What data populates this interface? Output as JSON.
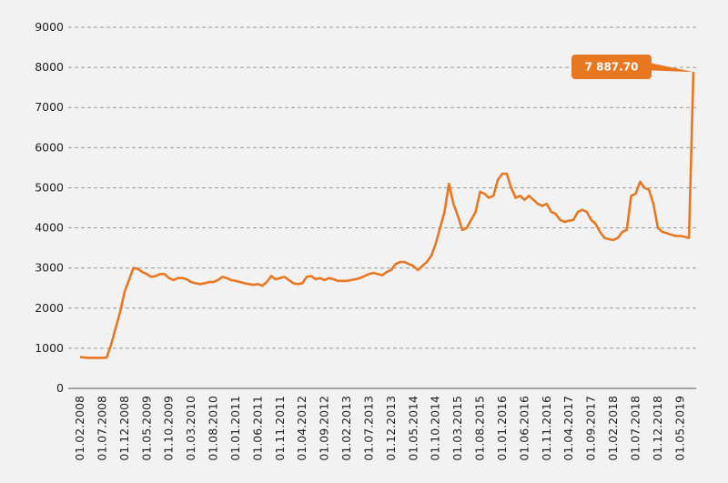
{
  "chart_data": {
    "type": "line",
    "color": "#e87722",
    "grid": true,
    "ylim": [
      0,
      9000
    ],
    "yticks": [
      0,
      1000,
      2000,
      3000,
      4000,
      5000,
      6000,
      7000,
      8000,
      9000
    ],
    "categories": [
      "01.02.2008",
      null,
      null,
      null,
      null,
      "01.07.2008",
      null,
      null,
      null,
      null,
      "01.12.2008",
      null,
      null,
      null,
      null,
      "01.05.2009",
      null,
      null,
      null,
      null,
      "01.10.2009",
      null,
      null,
      null,
      null,
      "01.03.2010",
      null,
      null,
      null,
      null,
      "01.08.2010",
      null,
      null,
      null,
      null,
      "01.01.2011",
      null,
      null,
      null,
      null,
      "01.06.2011",
      null,
      null,
      null,
      null,
      "01.11.2011",
      null,
      null,
      null,
      null,
      "01.04.2012",
      null,
      null,
      null,
      null,
      "01.09.2012",
      null,
      null,
      null,
      null,
      "01.02.2013",
      null,
      null,
      null,
      null,
      "01.07.2013",
      null,
      null,
      null,
      null,
      "01.12.2013",
      null,
      null,
      null,
      null,
      "01.05.2014",
      null,
      null,
      null,
      null,
      "01.10.2014",
      null,
      null,
      null,
      null,
      "01.03.2015",
      null,
      null,
      null,
      null,
      "01.08.2015",
      null,
      null,
      null,
      null,
      "01.01.2016",
      null,
      null,
      null,
      null,
      "01.06.2016",
      null,
      null,
      null,
      null,
      "01.11.2016",
      null,
      null,
      null,
      null,
      "01.04.2017",
      null,
      null,
      null,
      null,
      "01.09.2017",
      null,
      null,
      null,
      null,
      "01.02.2018",
      null,
      null,
      null,
      null,
      "01.07.2018",
      null,
      null,
      null,
      null,
      "01.12.2018",
      null,
      null,
      null,
      null,
      "01.05.2019",
      null,
      null,
      null
    ],
    "values": [
      780,
      770,
      760,
      760,
      760,
      760,
      770,
      1100,
      1500,
      1900,
      2400,
      2700,
      3000,
      2980,
      2900,
      2850,
      2780,
      2800,
      2850,
      2850,
      2750,
      2700,
      2750,
      2750,
      2720,
      2650,
      2620,
      2600,
      2620,
      2650,
      2650,
      2700,
      2780,
      2750,
      2700,
      2680,
      2650,
      2620,
      2600,
      2580,
      2600,
      2560,
      2650,
      2800,
      2720,
      2750,
      2780,
      2700,
      2620,
      2600,
      2620,
      2780,
      2800,
      2720,
      2750,
      2700,
      2750,
      2720,
      2680,
      2680,
      2680,
      2700,
      2720,
      2750,
      2800,
      2850,
      2880,
      2850,
      2820,
      2900,
      2950,
      3100,
      3150,
      3150,
      3100,
      3050,
      2950,
      3050,
      3150,
      3300,
      3600,
      4000,
      4400,
      5100,
      4600,
      4300,
      3950,
      4000,
      4200,
      4400,
      4900,
      4850,
      4750,
      4800,
      5200,
      5350,
      5350,
      5000,
      4750,
      4800,
      4700,
      4800,
      4700,
      4600,
      4550,
      4600,
      4400,
      4350,
      4200,
      4150,
      4180,
      4200,
      4400,
      4450,
      4400,
      4200,
      4100,
      3900,
      3750,
      3720,
      3700,
      3750,
      3900,
      3950,
      4800,
      4850,
      5150,
      5000,
      4950,
      4600,
      4000,
      3900,
      3870,
      3830,
      3800,
      3800,
      3780,
      3750,
      7887.7
    ],
    "value_labels": [
      null,
      null,
      null,
      null,
      null,
      null,
      null,
      null,
      null,
      null,
      null,
      null,
      null,
      null,
      null,
      null,
      null,
      null,
      null,
      null,
      null,
      null,
      null,
      null,
      null,
      null,
      null,
      null,
      null,
      null,
      null,
      null,
      null,
      null,
      null,
      null,
      null,
      null,
      null,
      null,
      null,
      null,
      null,
      null,
      null,
      null,
      null,
      null,
      null,
      null,
      null,
      null,
      null,
      null,
      null,
      null,
      null,
      null,
      null,
      null,
      null,
      null,
      null,
      null,
      null,
      null,
      null,
      null,
      null,
      null,
      null,
      null,
      null,
      null,
      null,
      null,
      null,
      null,
      null,
      null,
      null,
      null,
      null,
      null,
      null,
      null,
      null,
      null,
      null,
      null,
      null,
      null,
      null,
      null,
      null,
      null,
      null,
      null,
      null,
      null,
      null,
      null,
      null,
      null,
      null,
      null,
      null,
      null,
      null,
      null,
      null,
      null,
      null,
      null,
      null,
      null,
      null,
      null,
      null,
      null,
      null,
      null,
      null,
      null,
      null,
      null,
      null,
      null,
      null,
      null,
      null,
      null,
      null,
      null,
      null,
      null,
      null,
      null,
      "7 887.70"
    ]
  }
}
